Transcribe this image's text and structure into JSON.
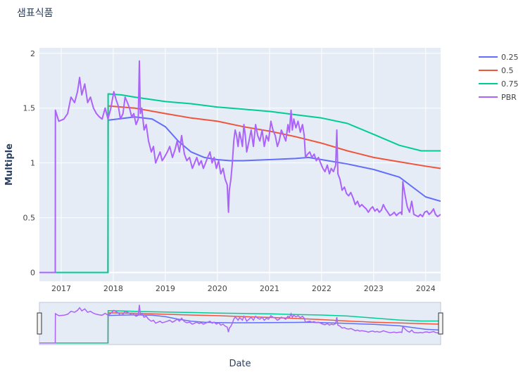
{
  "chart_data": {
    "type": "line",
    "title": "샘표식품",
    "xlabel": "Date",
    "ylabel": "Multiple",
    "x_range": [
      "2016-08-01",
      "2024-04-15"
    ],
    "ylim": [
      -0.08,
      2.05
    ],
    "x_ticks": [
      "2017",
      "2018",
      "2019",
      "2020",
      "2021",
      "2022",
      "2023",
      "2024"
    ],
    "y_ticks": [
      0,
      0.5,
      1,
      1.5,
      2
    ],
    "y_tick_labels": [
      "0",
      "0.5",
      "1",
      "1.5",
      "2"
    ],
    "grid": true,
    "legend_position": "top-right",
    "range_slider": true,
    "colors": {
      "0.25": "#636efa",
      "0.5": "#ef553b",
      "0.75": "#00cc96",
      "PBR": "#ab63fa",
      "plot_bg": "#e5ecf6",
      "grid": "#ffffff"
    },
    "series": [
      {
        "name": "0.25",
        "x": [
          "2016-08-01",
          "2017-11-25",
          "2017-11-26",
          "2018-02-01",
          "2018-06-01",
          "2018-10-01",
          "2019-01-01",
          "2019-04-01",
          "2019-07-01",
          "2019-10-01",
          "2020-01-01",
          "2020-04-01",
          "2020-07-01",
          "2021-01-01",
          "2021-07-01",
          "2021-10-01",
          "2022-01-01",
          "2022-07-01",
          "2023-01-01",
          "2023-07-01",
          "2023-10-01",
          "2024-01-01",
          "2024-04-15"
        ],
        "y": [
          0,
          0,
          1.39,
          1.4,
          1.42,
          1.4,
          1.33,
          1.2,
          1.1,
          1.05,
          1.03,
          1.02,
          1.02,
          1.03,
          1.04,
          1.05,
          1.03,
          0.99,
          0.94,
          0.87,
          0.78,
          0.69,
          0.65
        ]
      },
      {
        "name": "0.5",
        "x": [
          "2016-08-01",
          "2017-11-25",
          "2017-11-26",
          "2018-06-01",
          "2019-01-01",
          "2019-07-01",
          "2020-01-01",
          "2020-07-01",
          "2021-01-01",
          "2021-07-01",
          "2022-01-01",
          "2022-07-01",
          "2023-01-01",
          "2023-07-01",
          "2024-01-01",
          "2024-04-15"
        ],
        "y": [
          0,
          0,
          1.52,
          1.5,
          1.45,
          1.41,
          1.38,
          1.33,
          1.29,
          1.24,
          1.18,
          1.11,
          1.05,
          1.01,
          0.97,
          0.95
        ]
      },
      {
        "name": "0.75",
        "x": [
          "2016-08-01",
          "2017-11-25",
          "2017-11-26",
          "2018-03-01",
          "2018-06-01",
          "2019-01-01",
          "2019-07-01",
          "2020-01-01",
          "2020-07-01",
          "2021-01-01",
          "2021-07-01",
          "2022-01-01",
          "2022-07-01",
          "2023-01-01",
          "2023-07-01",
          "2023-12-01",
          "2024-04-15"
        ],
        "y": [
          0,
          0,
          1.63,
          1.62,
          1.6,
          1.56,
          1.54,
          1.51,
          1.49,
          1.47,
          1.44,
          1.41,
          1.36,
          1.26,
          1.16,
          1.11,
          1.11
        ]
      },
      {
        "name": "PBR",
        "x": [
          "2016-08-01",
          "2016-11-20",
          "2016-11-21",
          "2016-12-15",
          "2017-01-20",
          "2017-02-15",
          "2017-03-10",
          "2017-04-05",
          "2017-04-25",
          "2017-05-10",
          "2017-05-25",
          "2017-06-15",
          "2017-07-05",
          "2017-07-25",
          "2017-08-15",
          "2017-09-05",
          "2017-09-25",
          "2017-10-15",
          "2017-11-05",
          "2017-11-25",
          "2017-12-15",
          "2018-01-05",
          "2018-01-20",
          "2018-02-05",
          "2018-02-20",
          "2018-03-10",
          "2018-03-25",
          "2018-04-10",
          "2018-04-25",
          "2018-05-10",
          "2018-05-25",
          "2018-06-10",
          "2018-06-25",
          "2018-07-03",
          "2018-07-10",
          "2018-07-20",
          "2018-08-05",
          "2018-08-20",
          "2018-09-05",
          "2018-09-25",
          "2018-10-10",
          "2018-10-25",
          "2018-11-10",
          "2018-11-25",
          "2018-12-10",
          "2018-12-25",
          "2019-01-15",
          "2019-02-01",
          "2019-02-20",
          "2019-03-10",
          "2019-03-25",
          "2019-04-10",
          "2019-04-25",
          "2019-05-15",
          "2019-06-01",
          "2019-06-20",
          "2019-07-10",
          "2019-07-25",
          "2019-08-10",
          "2019-08-25",
          "2019-09-10",
          "2019-09-25",
          "2019-10-10",
          "2019-10-25",
          "2019-11-10",
          "2019-11-25",
          "2019-12-10",
          "2019-12-25",
          "2020-01-10",
          "2020-01-25",
          "2020-02-10",
          "2020-02-25",
          "2020-03-10",
          "2020-03-19",
          "2020-03-25",
          "2020-04-05",
          "2020-04-15",
          "2020-04-25",
          "2020-05-05",
          "2020-05-15",
          "2020-05-25",
          "2020-06-05",
          "2020-06-15",
          "2020-06-25",
          "2020-07-05",
          "2020-07-15",
          "2020-07-25",
          "2020-08-10",
          "2020-08-25",
          "2020-09-10",
          "2020-09-25",
          "2020-10-10",
          "2020-10-25",
          "2020-11-10",
          "2020-11-25",
          "2020-12-10",
          "2020-12-25",
          "2021-01-10",
          "2021-01-25",
          "2021-02-10",
          "2021-02-25",
          "2021-03-10",
          "2021-03-25",
          "2021-04-10",
          "2021-04-25",
          "2021-05-10",
          "2021-05-20",
          "2021-06-01",
          "2021-06-10",
          "2021-06-20",
          "2021-07-05",
          "2021-07-20",
          "2021-08-05",
          "2021-08-20",
          "2021-09-01",
          "2021-09-10",
          "2021-09-25",
          "2021-10-10",
          "2021-10-25",
          "2021-11-10",
          "2021-11-25",
          "2021-12-10",
          "2021-12-25",
          "2022-01-10",
          "2022-01-25",
          "2022-02-10",
          "2022-02-25",
          "2022-03-10",
          "2022-03-25",
          "2022-04-10",
          "2022-04-18",
          "2022-04-25",
          "2022-05-10",
          "2022-05-25",
          "2022-06-10",
          "2022-06-25",
          "2022-07-10",
          "2022-07-25",
          "2022-08-10",
          "2022-08-25",
          "2022-09-10",
          "2022-09-25",
          "2022-10-10",
          "2022-10-25",
          "2022-11-10",
          "2022-11-25",
          "2022-12-10",
          "2022-12-25",
          "2023-01-10",
          "2023-01-25",
          "2023-02-10",
          "2023-02-25",
          "2023-03-10",
          "2023-03-25",
          "2023-04-10",
          "2023-04-25",
          "2023-05-10",
          "2023-05-25",
          "2023-06-10",
          "2023-06-25",
          "2023-07-10",
          "2023-07-18",
          "2023-07-25",
          "2023-08-10",
          "2023-08-25",
          "2023-09-10",
          "2023-09-25",
          "2023-10-10",
          "2023-10-25",
          "2023-11-10",
          "2023-11-25",
          "2023-12-10",
          "2023-12-25",
          "2024-01-10",
          "2024-01-25",
          "2024-02-10",
          "2024-02-25",
          "2024-03-10",
          "2024-03-25",
          "2024-04-15"
        ],
        "y": [
          0,
          0,
          1.48,
          1.38,
          1.4,
          1.45,
          1.6,
          1.55,
          1.65,
          1.78,
          1.62,
          1.72,
          1.55,
          1.6,
          1.5,
          1.45,
          1.42,
          1.4,
          1.5,
          1.4,
          1.5,
          1.65,
          1.58,
          1.52,
          1.4,
          1.45,
          1.6,
          1.55,
          1.5,
          1.42,
          1.45,
          1.35,
          1.4,
          1.93,
          1.45,
          1.5,
          1.3,
          1.35,
          1.2,
          1.1,
          1.15,
          1.0,
          1.05,
          1.1,
          1.02,
          1.05,
          1.1,
          1.15,
          1.05,
          1.12,
          1.2,
          1.1,
          1.25,
          1.08,
          1.02,
          1.05,
          0.95,
          1.0,
          1.05,
          0.98,
          1.02,
          0.95,
          1.0,
          1.05,
          1.1,
          1.0,
          1.05,
          0.95,
          1.02,
          0.9,
          0.95,
          0.85,
          0.8,
          0.55,
          0.75,
          0.85,
          1.0,
          1.2,
          1.3,
          1.25,
          1.15,
          1.28,
          1.22,
          1.15,
          1.35,
          1.25,
          1.1,
          1.2,
          1.3,
          1.15,
          1.35,
          1.25,
          1.2,
          1.3,
          1.15,
          1.25,
          1.2,
          1.38,
          1.3,
          1.25,
          1.15,
          1.2,
          1.3,
          1.25,
          1.2,
          1.35,
          1.28,
          1.48,
          1.3,
          1.4,
          1.32,
          1.38,
          1.28,
          1.35,
          1.25,
          1.05,
          1.08,
          1.1,
          1.05,
          1.08,
          1.02,
          1.05,
          1.0,
          0.95,
          0.92,
          0.98,
          0.9,
          0.95,
          0.92,
          0.98,
          1.3,
          0.9,
          0.85,
          0.75,
          0.78,
          0.72,
          0.7,
          0.73,
          0.68,
          0.62,
          0.65,
          0.6,
          0.62,
          0.6,
          0.58,
          0.55,
          0.58,
          0.6,
          0.56,
          0.58,
          0.55,
          0.57,
          0.62,
          0.58,
          0.55,
          0.52,
          0.53,
          0.55,
          0.52,
          0.54,
          0.55,
          0.53,
          0.83,
          0.7,
          0.6,
          0.55,
          0.65,
          0.53,
          0.52,
          0.51,
          0.53,
          0.51,
          0.55,
          0.56,
          0.53,
          0.55,
          0.58,
          0.53,
          0.51,
          0.53
        ]
      }
    ]
  }
}
